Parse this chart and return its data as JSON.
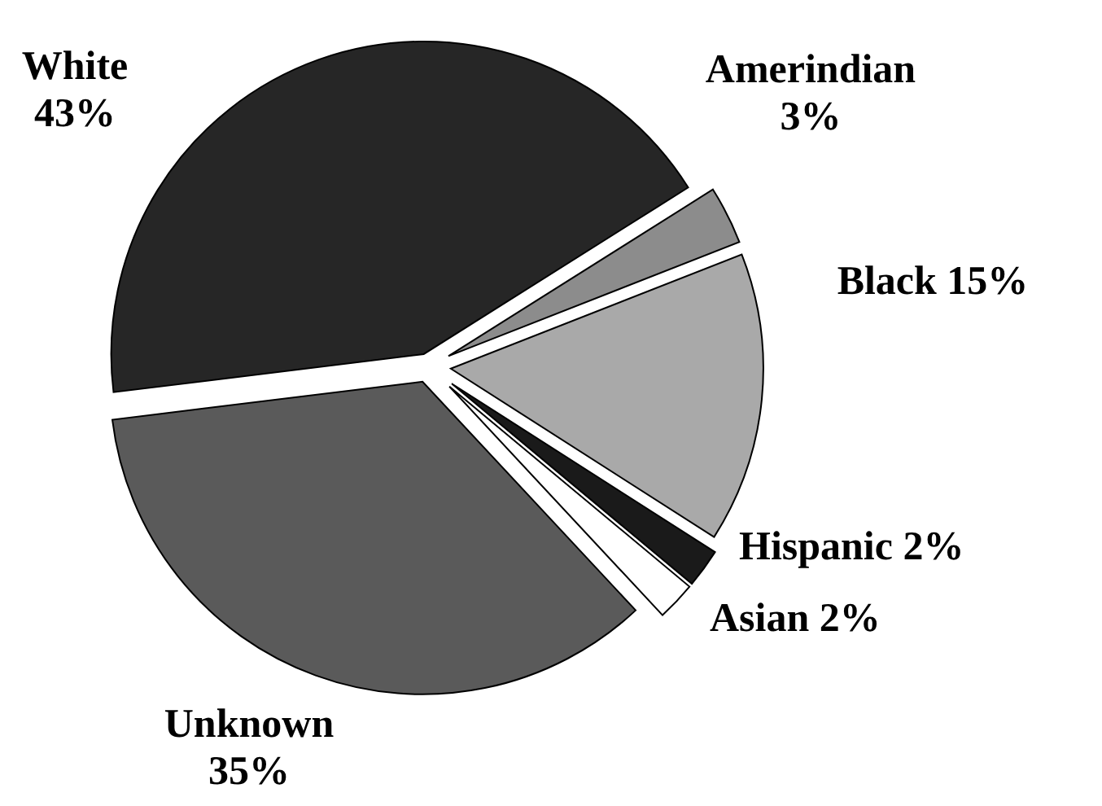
{
  "chart_data": {
    "type": "pie",
    "categories": [
      "White",
      "Amerindian",
      "Black",
      "Hispanic",
      "Asian",
      "Unknown"
    ],
    "values": [
      43,
      3,
      15,
      2,
      2,
      35
    ],
    "value_labels": [
      "43%",
      "3%",
      "15%",
      "2%",
      "2%",
      "35%"
    ],
    "colors": [
      "#262626",
      "#8c8c8c",
      "#a9a9a9",
      "#1a1a1a",
      "#ffffff",
      "#5a5a5a"
    ]
  }
}
